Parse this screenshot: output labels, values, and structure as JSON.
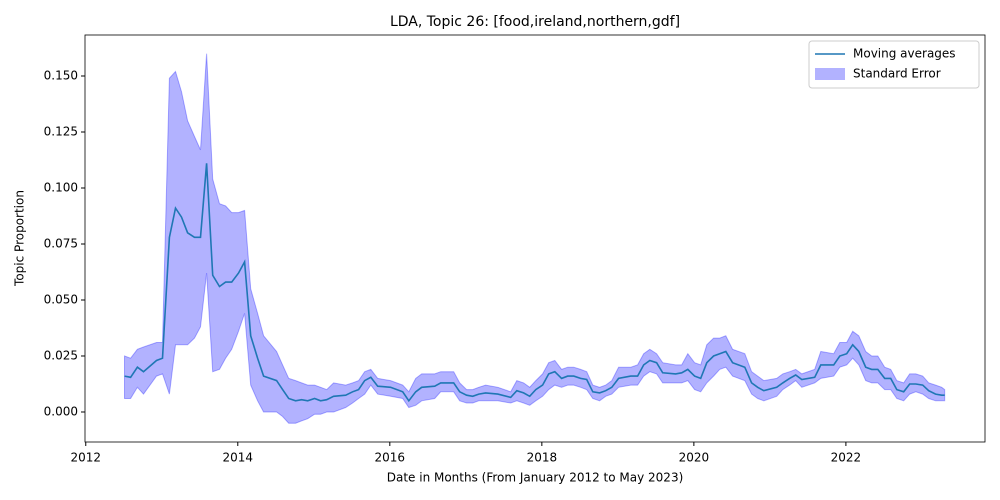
{
  "chart_data": {
    "type": "line",
    "title": "LDA, Topic 26: [food,ireland,northern,gdf]",
    "x_label": "Date in Months (From January 2012 to May 2023)",
    "y_label": "Topic Proportion",
    "legend": "upper right",
    "xlim": [
      2011.99,
      2023.83
    ],
    "ylim": [
      -0.0134,
      0.1683
    ],
    "xticks": [
      2012,
      2014,
      2016,
      2018,
      2020,
      2022
    ],
    "yticks": [
      {
        "value": 0,
        "label": "0.000"
      },
      0.025,
      {
        "value": 0.05,
        "label": "0.050"
      },
      0.075,
      {
        "value": 0.1,
        "label": "0.100"
      },
      0.125,
      {
        "value": 0.15,
        "label": "0.150"
      }
    ],
    "x": [
      2012.51,
      2012.59,
      2012.68,
      2012.76,
      2012.93,
      2013.01,
      2013.1,
      2013.18,
      2013.26,
      2013.34,
      2013.43,
      2013.51,
      2013.59,
      2013.67,
      2013.76,
      2013.84,
      2013.92,
      2014.01,
      2014.09,
      2014.17,
      2014.26,
      2014.34,
      2014.51,
      2014.59,
      2014.67,
      2014.76,
      2014.84,
      2014.92,
      2015.01,
      2015.09,
      2015.17,
      2015.26,
      2015.42,
      2015.51,
      2015.59,
      2015.67,
      2015.75,
      2015.84,
      2016.01,
      2016.17,
      2016.25,
      2016.34,
      2016.42,
      2016.59,
      2016.67,
      2016.84,
      2016.92,
      2017.01,
      2017.09,
      2017.17,
      2017.26,
      2017.42,
      2017.59,
      2017.67,
      2017.76,
      2017.84,
      2017.92,
      2018.01,
      2018.09,
      2018.17,
      2018.26,
      2018.34,
      2018.42,
      2018.51,
      2018.59,
      2018.67,
      2018.76,
      2018.84,
      2018.92,
      2019.01,
      2019.17,
      2019.26,
      2019.34,
      2019.42,
      2019.51,
      2019.59,
      2019.76,
      2019.84,
      2019.92,
      2020.01,
      2020.09,
      2020.17,
      2020.26,
      2020.34,
      2020.42,
      2020.51,
      2020.67,
      2020.76,
      2020.84,
      2020.92,
      2021.09,
      2021.17,
      2021.26,
      2021.34,
      2021.42,
      2021.59,
      2021.67,
      2021.84,
      2021.92,
      2022.01,
      2022.09,
      2022.17,
      2022.26,
      2022.34,
      2022.42,
      2022.51,
      2022.59,
      2022.67,
      2022.76,
      2022.84,
      2022.92,
      2023.01,
      2023.09,
      2023.18,
      2023.26,
      2023.3
    ],
    "series": [
      {
        "name": "Moving averages",
        "color": "#1f77b4",
        "values": [
          0.016,
          0.0155,
          0.02,
          0.018,
          0.023,
          0.024,
          0.078,
          0.091,
          0.087,
          0.08,
          0.078,
          0.078,
          0.111,
          0.061,
          0.056,
          0.058,
          0.058,
          0.062,
          0.067,
          0.034,
          0.024,
          0.016,
          0.014,
          0.01,
          0.006,
          0.005,
          0.0055,
          0.005,
          0.006,
          0.005,
          0.0055,
          0.007,
          0.0075,
          0.009,
          0.01,
          0.014,
          0.0155,
          0.0115,
          0.011,
          0.009,
          0.005,
          0.009,
          0.011,
          0.0115,
          0.013,
          0.013,
          0.009,
          0.0075,
          0.007,
          0.008,
          0.0085,
          0.008,
          0.0065,
          0.0095,
          0.0085,
          0.007,
          0.01,
          0.012,
          0.017,
          0.018,
          0.015,
          0.016,
          0.016,
          0.015,
          0.0145,
          0.009,
          0.0085,
          0.0095,
          0.011,
          0.015,
          0.016,
          0.016,
          0.021,
          0.023,
          0.022,
          0.0175,
          0.017,
          0.0175,
          0.019,
          0.016,
          0.015,
          0.022,
          0.025,
          0.026,
          0.027,
          0.022,
          0.02,
          0.013,
          0.011,
          0.0095,
          0.011,
          0.013,
          0.015,
          0.0165,
          0.0145,
          0.0155,
          0.021,
          0.021,
          0.025,
          0.026,
          0.03,
          0.027,
          0.02,
          0.019,
          0.019,
          0.015,
          0.015,
          0.01,
          0.009,
          0.0125,
          0.0125,
          0.012,
          0.0095,
          0.008,
          0.0075,
          0.0075
        ]
      }
    ],
    "band": {
      "name": "Standard Error",
      "color": "#0000ff",
      "lower": [
        0.006,
        0.006,
        0.011,
        0.008,
        0.016,
        0.017,
        0.008,
        0.03,
        0.03,
        0.03,
        0.033,
        0.038,
        0.062,
        0.018,
        0.019,
        0.024,
        0.028,
        0.036,
        0.044,
        0.012,
        0.005,
        0.0,
        0.0,
        -0.002,
        -0.005,
        -0.005,
        -0.004,
        -0.003,
        -0.001,
        -0.001,
        0.0,
        0.0,
        0.002,
        0.004,
        0.006,
        0.008,
        0.012,
        0.008,
        0.007,
        0.006,
        0.002,
        0.003,
        0.005,
        0.006,
        0.009,
        0.009,
        0.005,
        0.004,
        0.004,
        0.005,
        0.005,
        0.005,
        0.004,
        0.005,
        0.004,
        0.003,
        0.005,
        0.007,
        0.01,
        0.012,
        0.011,
        0.012,
        0.012,
        0.011,
        0.01,
        0.006,
        0.005,
        0.007,
        0.008,
        0.011,
        0.012,
        0.012,
        0.016,
        0.018,
        0.017,
        0.013,
        0.013,
        0.013,
        0.014,
        0.01,
        0.009,
        0.013,
        0.016,
        0.019,
        0.02,
        0.016,
        0.014,
        0.008,
        0.006,
        0.005,
        0.007,
        0.01,
        0.012,
        0.014,
        0.011,
        0.013,
        0.015,
        0.016,
        0.02,
        0.021,
        0.024,
        0.021,
        0.014,
        0.013,
        0.013,
        0.01,
        0.01,
        0.006,
        0.005,
        0.008,
        0.009,
        0.008,
        0.006,
        0.005,
        0.005,
        0.005
      ],
      "upper": [
        0.025,
        0.024,
        0.028,
        0.029,
        0.031,
        0.031,
        0.149,
        0.152,
        0.143,
        0.13,
        0.123,
        0.117,
        0.16,
        0.104,
        0.093,
        0.092,
        0.089,
        0.089,
        0.09,
        0.055,
        0.044,
        0.034,
        0.027,
        0.021,
        0.015,
        0.014,
        0.013,
        0.012,
        0.012,
        0.011,
        0.01,
        0.013,
        0.012,
        0.013,
        0.014,
        0.018,
        0.019,
        0.015,
        0.014,
        0.012,
        0.009,
        0.015,
        0.017,
        0.017,
        0.018,
        0.018,
        0.013,
        0.01,
        0.01,
        0.011,
        0.012,
        0.011,
        0.009,
        0.014,
        0.013,
        0.011,
        0.014,
        0.017,
        0.022,
        0.023,
        0.019,
        0.02,
        0.02,
        0.019,
        0.018,
        0.012,
        0.011,
        0.012,
        0.014,
        0.02,
        0.02,
        0.021,
        0.026,
        0.028,
        0.026,
        0.022,
        0.021,
        0.021,
        0.026,
        0.022,
        0.021,
        0.03,
        0.033,
        0.033,
        0.034,
        0.028,
        0.026,
        0.018,
        0.016,
        0.014,
        0.015,
        0.017,
        0.018,
        0.019,
        0.017,
        0.019,
        0.027,
        0.026,
        0.031,
        0.031,
        0.036,
        0.034,
        0.027,
        0.025,
        0.025,
        0.02,
        0.019,
        0.014,
        0.013,
        0.017,
        0.017,
        0.016,
        0.013,
        0.012,
        0.011,
        0.01
      ]
    }
  }
}
